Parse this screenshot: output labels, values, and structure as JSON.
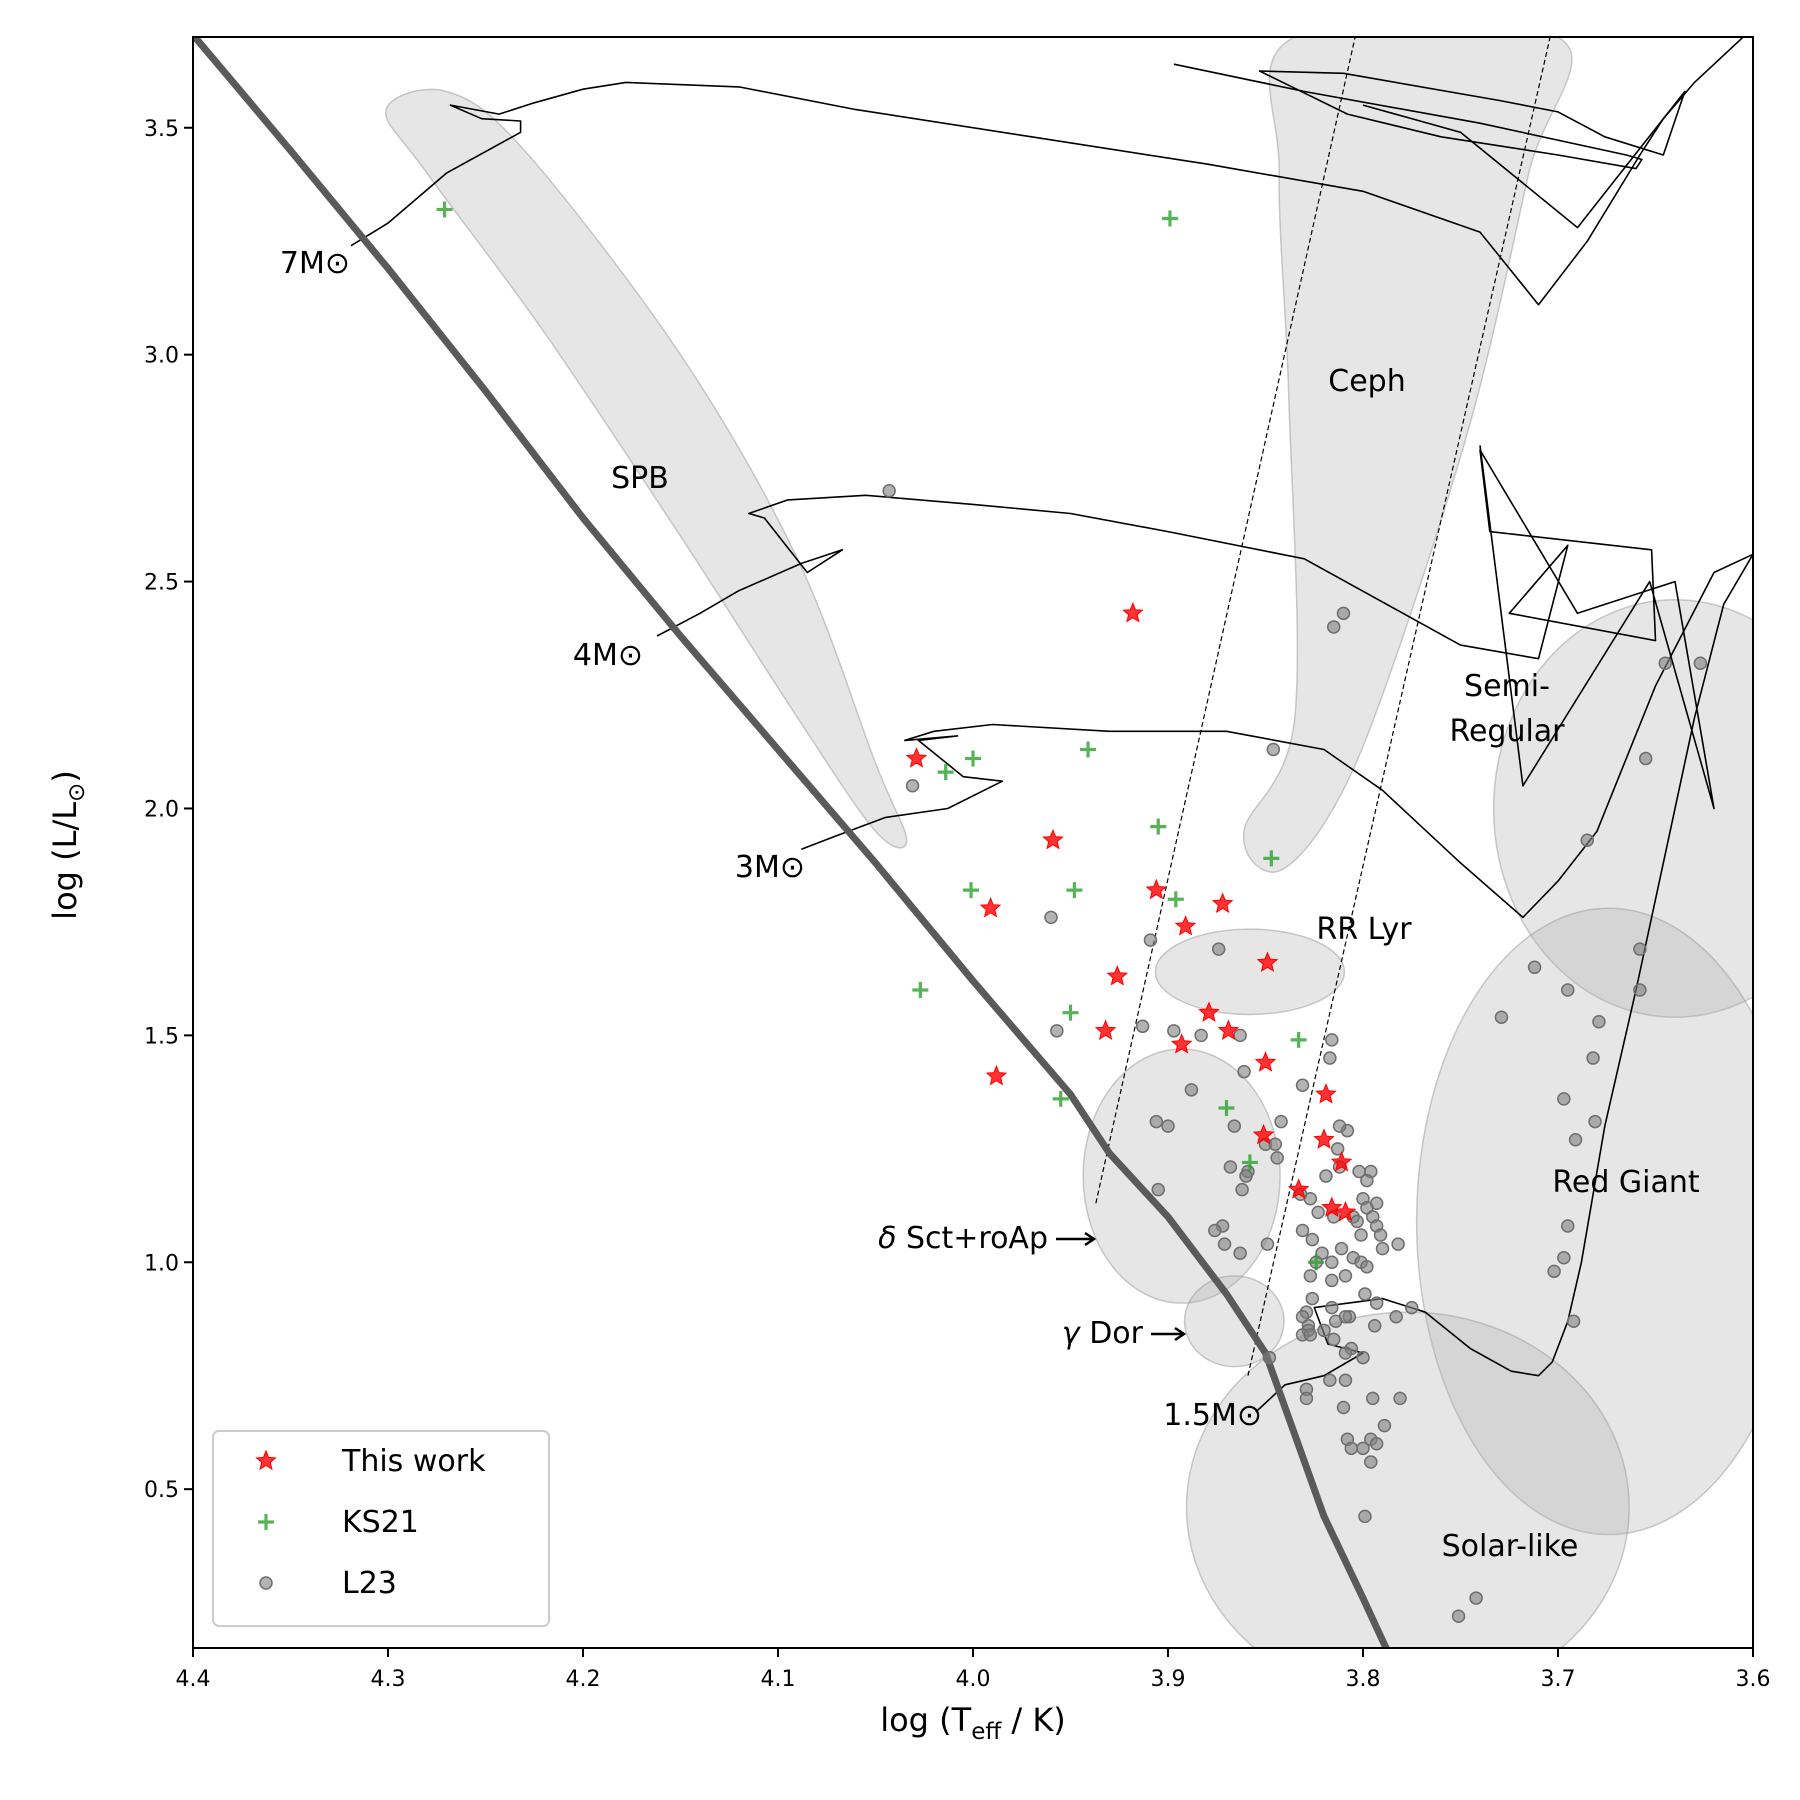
{
  "chart_data": {
    "type": "scatter",
    "title": "",
    "xlabel": "log (T_eff / K)",
    "ylabel": "log (L/L⊙)",
    "xlim": [
      4.4,
      3.6
    ],
    "ylim": [
      0.15,
      3.7
    ],
    "x_ticks": [
      "4.4",
      "4.3",
      "4.2",
      "4.1",
      "4.0",
      "3.9",
      "3.8",
      "3.7",
      "3.6"
    ],
    "y_ticks": [
      "0.5",
      "1.0",
      "1.5",
      "2.0",
      "2.5",
      "3.0",
      "3.5"
    ],
    "legend_position": "bottom-left",
    "series": [
      {
        "name": "This work",
        "marker": "star",
        "color": "#ff0000",
        "points": [
          [
            3.918,
            2.43
          ],
          [
            4.029,
            2.11
          ],
          [
            3.959,
            1.93
          ],
          [
            3.991,
            1.78
          ],
          [
            3.906,
            1.82
          ],
          [
            3.872,
            1.79
          ],
          [
            3.891,
            1.74
          ],
          [
            3.926,
            1.63
          ],
          [
            3.849,
            1.66
          ],
          [
            3.879,
            1.55
          ],
          [
            3.869,
            1.51
          ],
          [
            3.932,
            1.51
          ],
          [
            3.893,
            1.48
          ],
          [
            3.85,
            1.44
          ],
          [
            3.988,
            1.41
          ],
          [
            3.819,
            1.37
          ],
          [
            3.851,
            1.28
          ],
          [
            3.82,
            1.27
          ],
          [
            3.811,
            1.22
          ],
          [
            3.833,
            1.16
          ],
          [
            3.816,
            1.12
          ],
          [
            3.809,
            1.11
          ]
        ]
      },
      {
        "name": "KS21",
        "marker": "plus",
        "color": "#2ca02c",
        "points": [
          [
            4.271,
            3.32
          ],
          [
            3.899,
            3.3
          ],
          [
            3.941,
            2.13
          ],
          [
            4.0,
            2.11
          ],
          [
            4.014,
            2.08
          ],
          [
            3.905,
            1.96
          ],
          [
            3.847,
            1.89
          ],
          [
            4.001,
            1.82
          ],
          [
            3.948,
            1.82
          ],
          [
            3.896,
            1.8
          ],
          [
            4.027,
            1.6
          ],
          [
            3.95,
            1.55
          ],
          [
            3.833,
            1.49
          ],
          [
            3.955,
            1.36
          ],
          [
            3.87,
            1.34
          ],
          [
            3.858,
            1.22
          ],
          [
            3.824,
            1.0
          ]
        ]
      },
      {
        "name": "L23",
        "marker": "circle",
        "color": "#808080",
        "points": [
          [
            4.043,
            2.7
          ],
          [
            3.81,
            2.43
          ],
          [
            3.815,
            2.4
          ],
          [
            3.627,
            2.32
          ],
          [
            3.645,
            2.32
          ],
          [
            3.846,
            2.13
          ],
          [
            3.655,
            2.11
          ],
          [
            4.031,
            2.05
          ],
          [
            3.685,
            1.93
          ],
          [
            3.96,
            1.76
          ],
          [
            3.909,
            1.71
          ],
          [
            3.874,
            1.69
          ],
          [
            3.712,
            1.65
          ],
          [
            3.658,
            1.6
          ],
          [
            3.695,
            1.6
          ],
          [
            3.729,
            1.54
          ],
          [
            3.679,
            1.53
          ],
          [
            3.913,
            1.52
          ],
          [
            3.957,
            1.51
          ],
          [
            3.897,
            1.51
          ],
          [
            3.883,
            1.5
          ],
          [
            3.816,
            1.49
          ],
          [
            3.863,
            1.5
          ],
          [
            3.817,
            1.45
          ],
          [
            3.682,
            1.45
          ],
          [
            3.888,
            1.38
          ],
          [
            3.861,
            1.42
          ],
          [
            3.831,
            1.39
          ],
          [
            3.697,
            1.36
          ],
          [
            3.808,
            1.29
          ],
          [
            3.906,
            1.31
          ],
          [
            3.9,
            1.3
          ],
          [
            3.842,
            1.31
          ],
          [
            3.866,
            1.3
          ],
          [
            3.681,
            1.31
          ],
          [
            3.812,
            1.3
          ],
          [
            3.691,
            1.27
          ],
          [
            3.85,
            1.26
          ],
          [
            3.845,
            1.26
          ],
          [
            3.813,
            1.25
          ],
          [
            3.844,
            1.23
          ],
          [
            3.868,
            1.21
          ],
          [
            3.859,
            1.2
          ],
          [
            3.812,
            1.21
          ],
          [
            3.796,
            1.2
          ],
          [
            3.802,
            1.2
          ],
          [
            3.86,
            1.19
          ],
          [
            3.819,
            1.19
          ],
          [
            3.798,
            1.18
          ],
          [
            3.905,
            1.16
          ],
          [
            3.862,
            1.16
          ],
          [
            3.832,
            1.15
          ],
          [
            3.827,
            1.14
          ],
          [
            3.8,
            1.14
          ],
          [
            3.793,
            1.13
          ],
          [
            3.798,
            1.12
          ],
          [
            3.823,
            1.11
          ],
          [
            3.805,
            1.1
          ],
          [
            3.803,
            1.09
          ],
          [
            3.815,
            1.1
          ],
          [
            3.795,
            1.1
          ],
          [
            3.793,
            1.08
          ],
          [
            3.831,
            1.07
          ],
          [
            3.872,
            1.08
          ],
          [
            3.876,
            1.07
          ],
          [
            3.801,
            1.06
          ],
          [
            3.791,
            1.06
          ],
          [
            3.826,
            1.05
          ],
          [
            3.782,
            1.04
          ],
          [
            3.849,
            1.04
          ],
          [
            3.871,
            1.04
          ],
          [
            3.811,
            1.03
          ],
          [
            3.79,
            1.03
          ],
          [
            3.821,
            1.02
          ],
          [
            3.863,
            1.02
          ],
          [
            3.805,
            1.01
          ],
          [
            3.801,
            1.0
          ],
          [
            3.816,
            1.0
          ],
          [
            3.824,
            1.0
          ],
          [
            3.697,
            1.01
          ],
          [
            3.798,
            0.99
          ],
          [
            3.809,
            0.97
          ],
          [
            3.827,
            0.97
          ],
          [
            3.816,
            0.96
          ],
          [
            3.799,
            0.93
          ],
          [
            3.793,
            0.91
          ],
          [
            3.826,
            0.92
          ],
          [
            3.816,
            0.9
          ],
          [
            3.829,
            0.89
          ],
          [
            3.831,
            0.88
          ],
          [
            3.807,
            0.88
          ],
          [
            3.809,
            0.88
          ],
          [
            3.783,
            0.88
          ],
          [
            3.775,
            0.9
          ],
          [
            3.692,
            0.87
          ],
          [
            3.814,
            0.87
          ],
          [
            3.828,
            0.86
          ],
          [
            3.794,
            0.86
          ],
          [
            3.828,
            0.85
          ],
          [
            3.82,
            0.85
          ],
          [
            3.831,
            0.84
          ],
          [
            3.827,
            0.84
          ],
          [
            3.815,
            0.83
          ],
          [
            3.806,
            0.81
          ],
          [
            3.809,
            0.8
          ],
          [
            3.8,
            0.79
          ],
          [
            3.848,
            0.79
          ],
          [
            3.817,
            0.74
          ],
          [
            3.809,
            0.74
          ],
          [
            3.829,
            0.72
          ],
          [
            3.829,
            0.7
          ],
          [
            3.795,
            0.7
          ],
          [
            3.781,
            0.7
          ],
          [
            3.81,
            0.68
          ],
          [
            3.789,
            0.64
          ],
          [
            3.808,
            0.61
          ],
          [
            3.796,
            0.61
          ],
          [
            3.806,
            0.59
          ],
          [
            3.8,
            0.59
          ],
          [
            3.793,
            0.6
          ],
          [
            3.796,
            0.56
          ],
          [
            3.799,
            0.44
          ],
          [
            3.742,
            0.26
          ],
          [
            3.751,
            0.22
          ],
          [
            3.658,
            1.69
          ],
          [
            3.695,
            1.08
          ],
          [
            3.702,
            0.98
          ]
        ]
      }
    ],
    "regions": [
      {
        "label": "SPB",
        "text": "SPB"
      },
      {
        "label": "Ceph",
        "text": "Ceph"
      },
      {
        "label": "Semi-Regular",
        "text_lines": [
          "Semi-",
          "Regular"
        ]
      },
      {
        "label": "RR Lyr",
        "text": "RR Lyr"
      },
      {
        "label": "Red Giant",
        "text": "Red Giant"
      },
      {
        "label": "Solar-like",
        "text": "Solar-like"
      },
      {
        "label": "delta Sct+roAp",
        "greek": "δ",
        "text": " Sct+roAp"
      },
      {
        "label": "gamma Dor",
        "greek": "γ",
        "text": " Dor"
      }
    ],
    "mass_tracks": [
      {
        "label": "7M⊙"
      },
      {
        "label": "4M⊙"
      },
      {
        "label": "3M⊙"
      },
      {
        "label": "1.5M⊙"
      }
    ],
    "legend": [
      {
        "label": "This work",
        "marker": "star",
        "color": "#ff0000"
      },
      {
        "label": "KS21",
        "marker": "plus",
        "color": "#2ca02c"
      },
      {
        "label": "L23",
        "marker": "circle",
        "color": "#808080"
      }
    ]
  }
}
